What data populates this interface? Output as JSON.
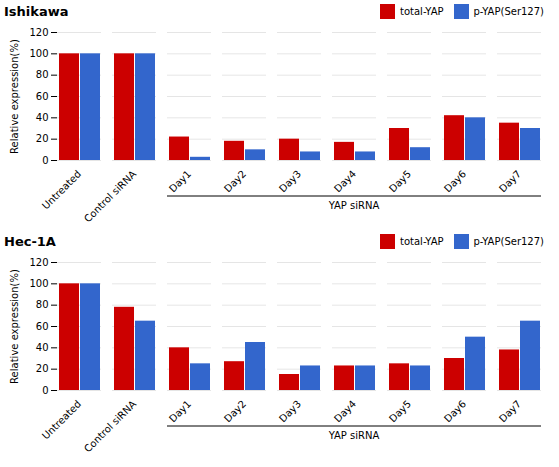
{
  "chart_data": [
    {
      "type": "bar",
      "title": "Ishikawa",
      "categories": [
        "Untreated",
        "Control siRNA",
        "Day1",
        "Day2",
        "Day3",
        "Day4",
        "Day5",
        "Day6",
        "Day7"
      ],
      "series": [
        {
          "name": "total-YAP",
          "color": "#cc0000",
          "values": [
            100,
            100,
            22,
            18,
            20,
            17,
            30,
            42,
            35
          ]
        },
        {
          "name": "p-YAP(Ser127)",
          "color": "#3366cc",
          "values": [
            100,
            100,
            3,
            10,
            8,
            8,
            12,
            40,
            30
          ]
        }
      ],
      "ylabel": "Relative expression(%)",
      "ylim": [
        0,
        120
      ],
      "yticks": [
        0,
        20,
        40,
        60,
        80,
        100,
        120
      ],
      "grid": true,
      "legend": "upper right",
      "annotations": [
        {
          "text": "YAP siRNA",
          "from": "Day1",
          "to": "Day7"
        }
      ]
    },
    {
      "type": "bar",
      "title": "Hec-1A",
      "categories": [
        "Untreated",
        "Control siRNA",
        "Day1",
        "Day2",
        "Day3",
        "Day4",
        "Day5",
        "Day6",
        "Day7"
      ],
      "series": [
        {
          "name": "total-YAP",
          "color": "#cc0000",
          "values": [
            100,
            78,
            40,
            27,
            15,
            23,
            25,
            30,
            38
          ]
        },
        {
          "name": "p-YAP(Ser127)",
          "color": "#3366cc",
          "values": [
            100,
            65,
            25,
            45,
            23,
            23,
            23,
            50,
            65
          ]
        }
      ],
      "ylabel": "Relative expression(%)",
      "ylim": [
        0,
        120
      ],
      "yticks": [
        0,
        20,
        40,
        60,
        80,
        100,
        120
      ],
      "grid": true,
      "legend": "upper right",
      "annotations": [
        {
          "text": "YAP siRNA",
          "from": "Day1",
          "to": "Day7"
        }
      ]
    }
  ]
}
